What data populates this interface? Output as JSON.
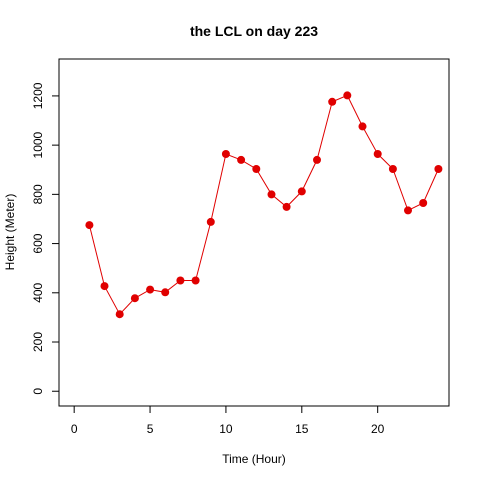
{
  "chart_data": {
    "type": "line",
    "title": "the LCL on day 223",
    "xlabel": "Time (Hour)",
    "ylabel": "Height (Meter)",
    "xlim": [
      -1,
      24.7
    ],
    "ylim": [
      -60,
      1350
    ],
    "xticks": [
      "0",
      "5",
      "10",
      "15",
      "20"
    ],
    "yticks": [
      "0",
      "200",
      "400",
      "600",
      "800",
      "1000",
      "1200"
    ],
    "grid": false,
    "legend": "none",
    "series": [
      {
        "color": "#e00000",
        "marker": "filled-circle",
        "x": [
          1,
          2,
          3,
          4,
          5,
          6,
          7,
          8,
          9,
          10,
          11,
          12,
          13,
          14,
          15,
          16,
          17,
          18,
          19,
          20,
          21,
          22,
          23,
          24
        ],
        "y": [
          675,
          427,
          313,
          378,
          413,
          402,
          450,
          450,
          688,
          964,
          940,
          903,
          800,
          749,
          812,
          940,
          1176,
          1202,
          1076,
          964,
          903,
          735,
          765,
          903
        ]
      }
    ]
  }
}
